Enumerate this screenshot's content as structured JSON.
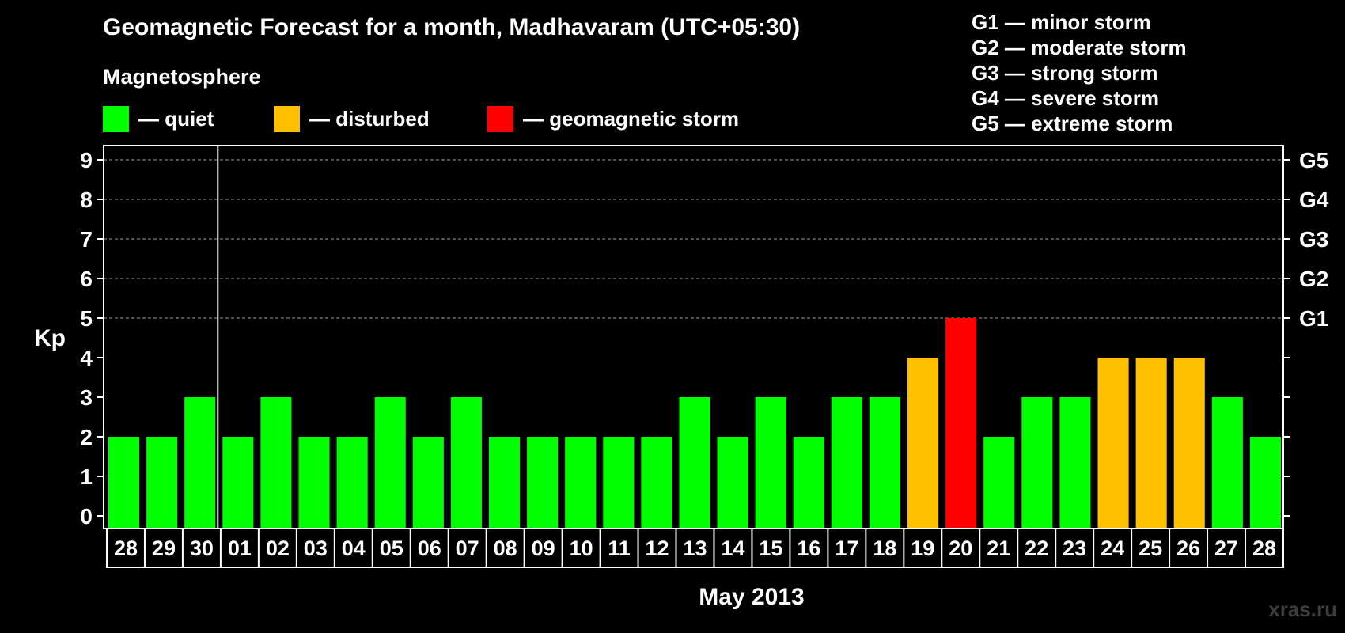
{
  "chart_data": {
    "type": "bar",
    "title": "Geomagnetic Forecast for a month, Madhavaram (UTC+05:30)",
    "subtitle": "Magnetosphere",
    "xlabel": "May 2013",
    "ylabel": "Kp",
    "ylim": [
      0,
      9
    ],
    "yticks": [
      "0",
      "1",
      "2",
      "3",
      "4",
      "5",
      "6",
      "7",
      "8",
      "9"
    ],
    "right_ticks": [
      {
        "value": 5,
        "label": "G1"
      },
      {
        "value": 6,
        "label": "G2"
      },
      {
        "value": 7,
        "label": "G3"
      },
      {
        "value": 8,
        "label": "G4"
      },
      {
        "value": 9,
        "label": "G5"
      }
    ],
    "categories": [
      "28",
      "29",
      "30",
      "01",
      "02",
      "03",
      "04",
      "05",
      "06",
      "07",
      "08",
      "09",
      "10",
      "11",
      "12",
      "13",
      "14",
      "15",
      "16",
      "17",
      "18",
      "19",
      "20",
      "21",
      "22",
      "23",
      "24",
      "25",
      "26",
      "27",
      "28"
    ],
    "values": [
      2,
      2,
      3,
      2,
      3,
      2,
      2,
      3,
      2,
      3,
      2,
      2,
      2,
      2,
      2,
      3,
      2,
      3,
      2,
      3,
      3,
      4,
      5,
      2,
      3,
      3,
      4,
      4,
      4,
      3,
      2
    ],
    "month_divider_after_index": 2,
    "grid": true,
    "colors": {
      "quiet": "#00ff00",
      "disturbed": "#ffc000",
      "storm": "#ff0000"
    },
    "legend": [
      {
        "key": "quiet",
        "label": "— quiet"
      },
      {
        "key": "disturbed",
        "label": "— disturbed"
      },
      {
        "key": "storm",
        "label": "— geomagnetic storm"
      }
    ],
    "storm_scale": [
      "G1 — minor storm",
      "G2 — moderate storm",
      "G3 — strong storm",
      "G4 — severe storm",
      "G5 — extreme storm"
    ]
  },
  "watermark": "xras.ru"
}
